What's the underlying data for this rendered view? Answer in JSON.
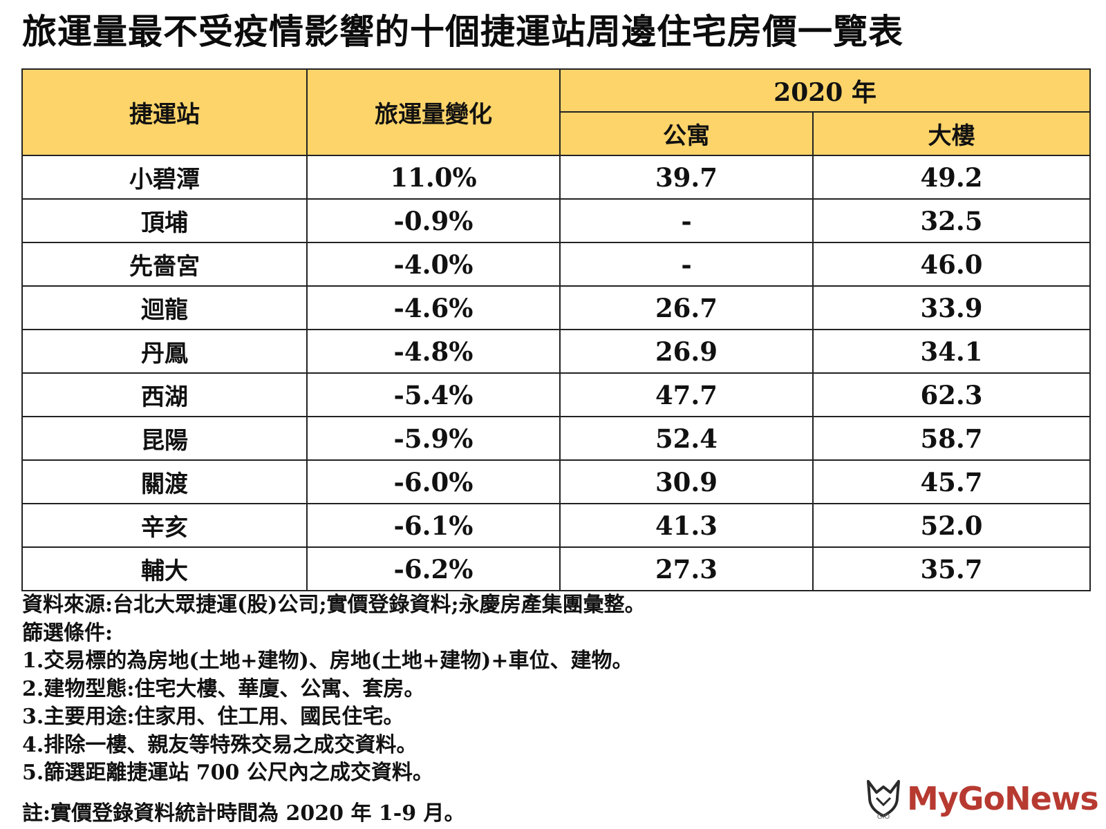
{
  "title": "旅運量最不受疫情影響的十個捷運站周邊住宅房價一覽表",
  "table": {
    "headers": {
      "station": "捷運站",
      "ridership_change": "旅運量變化",
      "year_group": "2020 年",
      "apartment": "公寓",
      "building": "大樓"
    },
    "rows": [
      {
        "station": "小碧潭",
        "change": "11.0%",
        "apartment": "39.7",
        "building": "49.2"
      },
      {
        "station": "頂埔",
        "change": "-0.9%",
        "apartment": "-",
        "building": "32.5"
      },
      {
        "station": "先嗇宮",
        "change": "-4.0%",
        "apartment": "-",
        "building": "46.0"
      },
      {
        "station": "迴龍",
        "change": "-4.6%",
        "apartment": "26.7",
        "building": "33.9"
      },
      {
        "station": "丹鳳",
        "change": "-4.8%",
        "apartment": "26.9",
        "building": "34.1"
      },
      {
        "station": "西湖",
        "change": "-5.4%",
        "apartment": "47.7",
        "building": "62.3"
      },
      {
        "station": "昆陽",
        "change": "-5.9%",
        "apartment": "52.4",
        "building": "58.7"
      },
      {
        "station": "關渡",
        "change": "-6.0%",
        "apartment": "30.9",
        "building": "45.7"
      },
      {
        "station": "辛亥",
        "change": "-6.1%",
        "apartment": "41.3",
        "building": "52.0"
      },
      {
        "station": "輔大",
        "change": "-6.2%",
        "apartment": "27.3",
        "building": "35.7"
      }
    ]
  },
  "notes": {
    "source": "資料來源:台北大眾捷運(股)公司;實價登錄資料;永慶房產集團彙整。",
    "filter_title": "篩選條件:",
    "filters": [
      "1.交易標的為房地(土地+建物)、房地(土地+建物)+車位、建物。",
      "2.建物型態:住宅大樓、華廈、公寓、套房。",
      "3.主要用途:住家用、住工用、國民住宅。",
      "4.排除一樓、親友等特殊交易之成交資料。",
      "5.篩選距離捷運站 700 公尺內之成交資料。"
    ],
    "remark": "註:實價登錄資料統計時間為 2020 年 1-9 月。"
  },
  "logo": {
    "brand": "MyGoNews",
    "brand_color": "#b73a31",
    "mark_icon": "mygo-fox-mark-icon"
  },
  "colors": {
    "header_bg": "#fcd46a",
    "border": "#222222"
  }
}
